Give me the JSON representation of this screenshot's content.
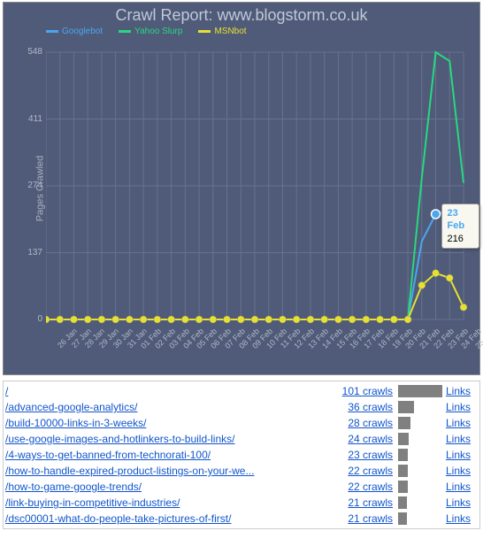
{
  "chart": {
    "title": "Crawl Report: www.blogstorm.co.uk",
    "title_color": "#c0c8d8",
    "background_color": "#4f5b78",
    "grid_color": "#66728e",
    "ylabel": "Pages Crawled",
    "ylim_min": 0,
    "ylim_max": 548,
    "yticks": [
      0,
      137,
      274,
      411,
      548
    ],
    "xticks": [
      "26 Jan",
      "27 Jan",
      "28 Jan",
      "29 Jan",
      "30 Jan",
      "31 Jan",
      "01 Feb",
      "02 Feb",
      "03 Feb",
      "04 Feb",
      "05 Feb",
      "06 Feb",
      "07 Feb",
      "08 Feb",
      "09 Feb",
      "10 Feb",
      "11 Feb",
      "12 Feb",
      "13 Feb",
      "14 Feb",
      "15 Feb",
      "16 Feb",
      "17 Feb",
      "18 Feb",
      "19 Feb",
      "20 Feb",
      "21 Feb",
      "22 Feb",
      "23 Feb",
      "24 Feb",
      "25 Feb"
    ],
    "series": [
      {
        "name": "Googlebot",
        "color": "#4aa6f0",
        "values": [
          0,
          0,
          0,
          0,
          0,
          0,
          0,
          0,
          0,
          0,
          0,
          0,
          0,
          0,
          0,
          0,
          0,
          0,
          0,
          0,
          0,
          0,
          0,
          0,
          0,
          0,
          0,
          160,
          216,
          225,
          210
        ]
      },
      {
        "name": "Yahoo Slurp",
        "color": "#28d880",
        "values": [
          0,
          0,
          0,
          0,
          0,
          0,
          0,
          0,
          0,
          0,
          0,
          0,
          0,
          0,
          0,
          0,
          0,
          0,
          0,
          0,
          0,
          0,
          0,
          0,
          0,
          0,
          0,
          290,
          548,
          530,
          280
        ]
      },
      {
        "name": "MSNbot",
        "color": "#e8e030",
        "values": [
          0,
          0,
          0,
          0,
          0,
          0,
          0,
          0,
          0,
          0,
          0,
          0,
          0,
          0,
          0,
          0,
          0,
          0,
          0,
          0,
          0,
          0,
          0,
          0,
          0,
          0,
          0,
          70,
          95,
          85,
          25
        ]
      }
    ],
    "marker_series": "MSNbot",
    "marker_radius": 4,
    "line_width": 2,
    "tooltip": {
      "date": "23 Feb",
      "value": "216",
      "series_color": "#4aa6f0",
      "x_index": 28
    }
  },
  "table": {
    "bar_color": "#808080",
    "bar_max": 101,
    "bar_cell_width": 50,
    "links_label": "Links",
    "rows": [
      {
        "path": "/",
        "crawls": 101
      },
      {
        "path": "/advanced-google-analytics/",
        "crawls": 36
      },
      {
        "path": "/build-10000-links-in-3-weeks/",
        "crawls": 28
      },
      {
        "path": "/use-google-images-and-hotlinkers-to-build-links/",
        "crawls": 24
      },
      {
        "path": "/4-ways-to-get-banned-from-technorati-100/",
        "crawls": 23
      },
      {
        "path": "/how-to-handle-expired-product-listings-on-your-we...",
        "crawls": 22
      },
      {
        "path": "/how-to-game-google-trends/",
        "crawls": 22
      },
      {
        "path": "/link-buying-in-competitive-industries/",
        "crawls": 21
      },
      {
        "path": "/dsc00001-what-do-people-take-pictures-of-first/",
        "crawls": 21
      }
    ]
  }
}
